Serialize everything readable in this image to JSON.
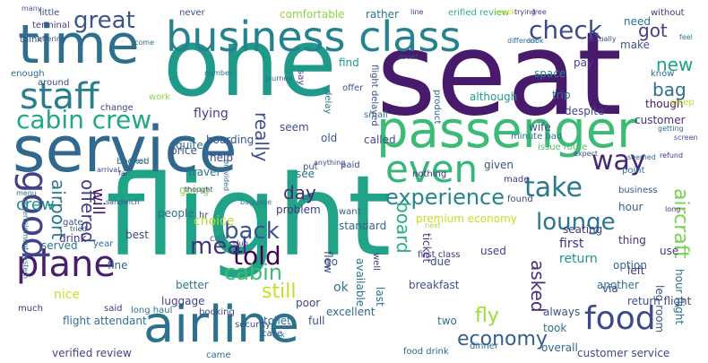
{
  "words": [
    {
      "text": "flight",
      "color": "#20a386"
    },
    {
      "text": "seat",
      "color": "#481a6c"
    },
    {
      "text": "one",
      "color": "#1f9a8a"
    },
    {
      "text": "service",
      "color": "#31688e"
    },
    {
      "text": "passenger",
      "color": "#3bbb75"
    },
    {
      "text": "airline",
      "color": "#2c728e"
    },
    {
      "text": "time",
      "color": "#2d708e"
    },
    {
      "text": "business class",
      "color": "#26828e"
    },
    {
      "text": "plane",
      "color": "#481f70"
    },
    {
      "text": "staff",
      "color": "#287d8e"
    },
    {
      "text": "good",
      "color": "#404387"
    },
    {
      "text": "even",
      "color": "#35b779"
    },
    {
      "text": "food",
      "color": "#3e4989"
    },
    {
      "text": "check",
      "color": "#3e4a89"
    },
    {
      "text": "cabin crew",
      "color": "#22a884"
    },
    {
      "text": "great",
      "color": "#3b528b"
    },
    {
      "text": "lounge",
      "color": "#2a788e"
    },
    {
      "text": "experience",
      "color": "#25858e"
    },
    {
      "text": "told",
      "color": "#440154"
    },
    {
      "text": "meal",
      "color": "#46337e"
    },
    {
      "text": "cabin",
      "color": "#3fbc73"
    },
    {
      "text": "back",
      "color": "#3a548c"
    },
    {
      "text": "still",
      "color": "#c2df23"
    },
    {
      "text": "way",
      "color": "#482576"
    },
    {
      "text": "take",
      "color": "#2a788e"
    },
    {
      "text": "economy",
      "color": "#355f8d"
    },
    {
      "text": "fly",
      "color": "#a0da39"
    },
    {
      "text": "got",
      "color": "#433e85"
    },
    {
      "text": "new",
      "color": "#1fa187"
    },
    {
      "text": "bag",
      "color": "#2e6e8e"
    },
    {
      "text": "day",
      "color": "#482878"
    },
    {
      "text": "crew",
      "color": "#20928c"
    },
    {
      "text": "board",
      "color": "#29af7f"
    },
    {
      "text": "asked",
      "color": "#472d7b"
    },
    {
      "text": "aircraft",
      "color": "#7ad151"
    },
    {
      "text": "airport",
      "color": "#2a788e"
    },
    {
      "text": "offered",
      "color": "#433e85"
    },
    {
      "text": "really",
      "color": "#3b528b"
    },
    {
      "text": "will",
      "color": "#471063"
    },
    {
      "text": "verified review",
      "color": "#414487"
    },
    {
      "text": "customer service",
      "color": "#3e4a89"
    },
    {
      "text": "hour",
      "color": "#33638d"
    },
    {
      "text": "people",
      "color": "#2c728e"
    },
    {
      "text": "said",
      "color": "#443983"
    },
    {
      "text": "long haul",
      "color": "#2d708e"
    },
    {
      "text": "booking",
      "color": "#414487"
    },
    {
      "text": "excellent",
      "color": "#31688e"
    },
    {
      "text": "two",
      "color": "#2c728e"
    },
    {
      "text": "breakfast",
      "color": "#3b528b"
    },
    {
      "text": "first",
      "color": "#46327e"
    },
    {
      "text": "return",
      "color": "#21918c"
    },
    {
      "text": "luggage",
      "color": "#404387"
    },
    {
      "text": "better",
      "color": "#2a788e"
    },
    {
      "text": "nice",
      "color": "#cae11f"
    },
    {
      "text": "choice",
      "color": "#b5de2b"
    },
    {
      "text": "seating",
      "color": "#443983"
    },
    {
      "text": "thing",
      "color": "#46337e"
    },
    {
      "text": "option",
      "color": "#32658e"
    },
    {
      "text": "make",
      "color": "#38588c"
    },
    {
      "text": "need",
      "color": "#2e6f8e"
    },
    {
      "text": "never",
      "color": "#3d4e8a"
    },
    {
      "text": "comfortable",
      "color": "#8fd744"
    },
    {
      "text": "rather",
      "color": "#2b748e"
    },
    {
      "text": "erified review",
      "color": "#2db27d"
    },
    {
      "text": "without",
      "color": "#453781"
    },
    {
      "text": "little",
      "color": "#3e4a89"
    },
    {
      "text": "terminal",
      "color": "#414487"
    },
    {
      "text": "think",
      "color": "#3b528b"
    },
    {
      "text": "enough",
      "color": "#31688e"
    },
    {
      "text": "around",
      "color": "#3e4989"
    },
    {
      "text": "pay",
      "color": "#433d84"
    },
    {
      "text": "know",
      "color": "#2e6e8e"
    },
    {
      "text": "space",
      "color": "#25848e"
    },
    {
      "text": "find",
      "color": "#1f988b"
    },
    {
      "text": "offer",
      "color": "#3a548c"
    },
    {
      "text": "despite",
      "color": "#414487"
    },
    {
      "text": "although",
      "color": "#1f9a8a"
    },
    {
      "text": "trip",
      "color": "#2c728e"
    },
    {
      "text": "wife",
      "color": "#3b528b"
    },
    {
      "text": "small",
      "color": "#2d708e"
    },
    {
      "text": "work",
      "color": "#90d743"
    },
    {
      "text": "change",
      "color": "#404588"
    },
    {
      "text": "flying",
      "color": "#404387"
    },
    {
      "text": "boarding",
      "color": "#3b528b"
    },
    {
      "text": "old",
      "color": "#38588c"
    },
    {
      "text": "called",
      "color": "#3e4a89"
    },
    {
      "text": "issue route",
      "color": "#4ac16d"
    },
    {
      "text": "customer",
      "color": "#46337e"
    },
    {
      "text": "minute bad",
      "color": "#2d708e"
    },
    {
      "text": "though",
      "color": "#481b6d"
    },
    {
      "text": "quite",
      "color": "#31688e"
    },
    {
      "text": "seem",
      "color": "#3d4e8a"
    },
    {
      "text": "help",
      "color": "#414487"
    },
    {
      "text": "travel",
      "color": "#2c728e"
    },
    {
      "text": "price",
      "color": "#3a548c"
    },
    {
      "text": "booked",
      "color": "#2e6e8e"
    },
    {
      "text": "going",
      "color": "#87d549"
    },
    {
      "text": "put",
      "color": "#3e4a89"
    },
    {
      "text": "see",
      "color": "#2a788e"
    },
    {
      "text": "nothing",
      "color": "#46337e"
    },
    {
      "text": "given",
      "color": "#3b528b"
    },
    {
      "text": "made",
      "color": "#453882"
    },
    {
      "text": "point",
      "color": "#2a778e"
    },
    {
      "text": "business",
      "color": "#39558c"
    },
    {
      "text": "found",
      "color": "#3e4989"
    },
    {
      "text": "want",
      "color": "#365c8d"
    },
    {
      "text": "problem",
      "color": "#443983"
    },
    {
      "text": "standard",
      "color": "#31688e"
    },
    {
      "text": "premium economy",
      "color": "#c8e020"
    },
    {
      "text": "bit",
      "color": "#3b528b"
    },
    {
      "text": "flew",
      "color": "#3e4a89"
    },
    {
      "text": "well",
      "color": "#46337e"
    },
    {
      "text": "available",
      "color": "#2c728e"
    },
    {
      "text": "due",
      "color": "#3e4a89"
    },
    {
      "text": "ticket",
      "color": "#443983"
    },
    {
      "text": "toilet",
      "color": "#2e6f8e"
    },
    {
      "text": "full",
      "color": "#3b528b"
    },
    {
      "text": "last",
      "color": "#2d708e"
    },
    {
      "text": "poor",
      "color": "#404387"
    },
    {
      "text": "fine",
      "color": "#31688e"
    },
    {
      "text": "hr",
      "color": "#3e4989"
    },
    {
      "text": "call",
      "color": "#2e6e8e"
    },
    {
      "text": "gate",
      "color": "#3b528b"
    },
    {
      "text": "drink",
      "color": "#453781"
    },
    {
      "text": "served",
      "color": "#2c728e"
    },
    {
      "text": "best",
      "color": "#3e4a89"
    },
    {
      "text": "year",
      "color": "#2d708e"
    },
    {
      "text": "much",
      "color": "#46337e"
    },
    {
      "text": "always",
      "color": "#3b528b"
    },
    {
      "text": "took",
      "color": "#2c728e"
    },
    {
      "text": "overall",
      "color": "#31688e"
    },
    {
      "text": "via",
      "color": "#3e4a89"
    },
    {
      "text": "left",
      "color": "#443983"
    },
    {
      "text": "another",
      "color": "#2e6e8e"
    },
    {
      "text": "used",
      "color": "#404387"
    },
    {
      "text": "go",
      "color": "#3b528b"
    },
    {
      "text": "ok",
      "color": "#2d708e"
    },
    {
      "text": "use",
      "color": "#453781"
    },
    {
      "text": "leg room",
      "color": "#3b528b"
    },
    {
      "text": "return flight",
      "color": "#3e4a89"
    },
    {
      "text": "hour flight",
      "color": "#2c728e"
    },
    {
      "text": "first class",
      "color": "#46337e"
    },
    {
      "text": "product",
      "color": "#31688e"
    },
    {
      "text": "delay",
      "color": "#2a788e"
    },
    {
      "text": "say",
      "color": "#414487"
    },
    {
      "text": "paid",
      "color": "#3e4989"
    },
    {
      "text": "sleep",
      "color": "#c0df25"
    },
    {
      "text": "flight delayed",
      "color": "#3b528b"
    },
    {
      "text": "flight attendant",
      "color": "#2c728e"
    },
    {
      "text": "food drink",
      "color": "#31688e"
    },
    {
      "text": "dinner",
      "color": "#2d708e"
    },
    {
      "text": "security",
      "color": "#3e4a89"
    },
    {
      "text": "came",
      "color": "#2e6e8e"
    },
    {
      "text": "case",
      "color": "#3b528b"
    },
    {
      "text": "snack",
      "color": "#d8e219"
    },
    {
      "text": "free",
      "color": "#404387"
    },
    {
      "text": "trying",
      "color": "#453781"
    },
    {
      "text": "different",
      "color": "#2c728e"
    },
    {
      "text": "look",
      "color": "#31688e"
    },
    {
      "text": "actually",
      "color": "#3e4a89"
    },
    {
      "text": "feel",
      "color": "#2a788e"
    },
    {
      "text": "usual",
      "color": "#3b528b"
    },
    {
      "text": "line",
      "color": "#46337e"
    },
    {
      "text": "number",
      "color": "#2d708e"
    },
    {
      "text": "journey",
      "color": "#31688e"
    },
    {
      "text": "provided",
      "color": "#2c728e"
    },
    {
      "text": "anything",
      "color": "#3e4989"
    },
    {
      "text": "expect",
      "color": "#3b528b"
    },
    {
      "text": "least",
      "color": "#2e6e8e"
    },
    {
      "text": "arrival",
      "color": "#3e4a89"
    },
    {
      "text": "far",
      "color": "#46337e"
    },
    {
      "text": "menu",
      "color": "#2d708e"
    },
    {
      "text": "tried",
      "color": "#31688e"
    },
    {
      "text": "sandwich",
      "color": "#3b528b"
    },
    {
      "text": "entertainment system",
      "color": "#2c728e"
    },
    {
      "text": "club",
      "color": "#404387"
    },
    {
      "text": "thought",
      "color": "#3e4a89"
    },
    {
      "text": "baggage",
      "color": "#2a788e"
    },
    {
      "text": "refund",
      "color": "#46337e"
    },
    {
      "text": "seemed",
      "color": "#31688e"
    },
    {
      "text": "screen",
      "color": "#3b528b"
    },
    {
      "text": "getting",
      "color": "#2d708e"
    },
    {
      "text": "ask",
      "color": "#2e6e8e"
    },
    {
      "text": "offering",
      "color": "#3e4989"
    },
    {
      "text": "many",
      "color": "#3b528b"
    },
    {
      "text": "come",
      "color": "#2c728e"
    },
    {
      "text": "next",
      "color": "#a5db36"
    },
    {
      "text": "long",
      "color": "#46337e"
    }
  ]
}
